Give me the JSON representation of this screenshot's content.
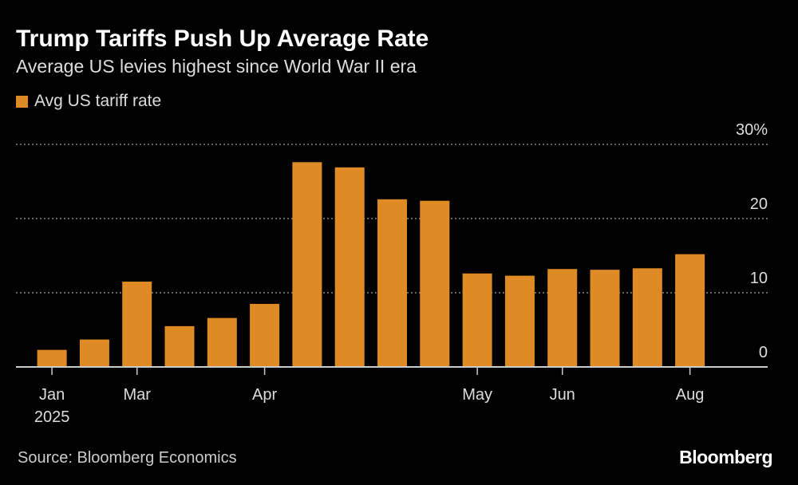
{
  "title": "Trump Tariffs Push Up Average Rate",
  "subtitle": "Average US levies highest since World War II era",
  "source": "Source: Bloomberg Economics",
  "logo": "Bloomberg",
  "colors": {
    "bar": "#DE8B25",
    "background": "#000000"
  },
  "chart_data": {
    "type": "bar",
    "series": [
      {
        "name": "Avg US tariff rate",
        "values": [
          2.3,
          3.7,
          11.5,
          5.5,
          6.6,
          8.5,
          27.6,
          26.9,
          22.6,
          22.4,
          12.6,
          12.3,
          13.2,
          13.1,
          13.3,
          15.2
        ]
      }
    ],
    "x_tick_labels": [
      {
        "index": 0,
        "label": "Jan",
        "sublabel": "2025"
      },
      {
        "index": 2,
        "label": "Mar"
      },
      {
        "index": 5,
        "label": "Apr"
      },
      {
        "index": 10,
        "label": "May"
      },
      {
        "index": 12,
        "label": "Jun"
      },
      {
        "index": 15,
        "label": "Aug"
      }
    ],
    "y_ticks": [
      {
        "value": 0,
        "label": "0"
      },
      {
        "value": 10,
        "label": "10"
      },
      {
        "value": 20,
        "label": "20"
      },
      {
        "value": 30,
        "label": "30%"
      }
    ],
    "ylim": [
      0,
      30
    ],
    "grid": true,
    "y_axis_side": "right",
    "legend_position": "top-left"
  }
}
